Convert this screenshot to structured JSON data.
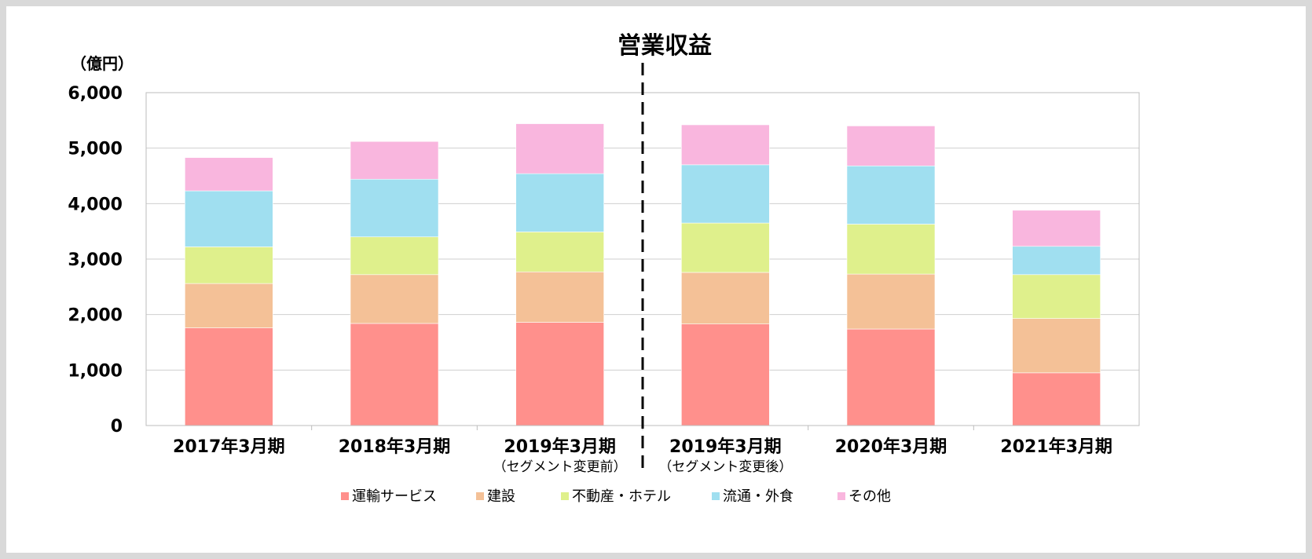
{
  "chart_data": {
    "type": "bar",
    "stacked": true,
    "title": "営業収益",
    "unit_label": "（億円）",
    "ylim": [
      0,
      6000
    ],
    "yticks": [
      "0",
      "1,000",
      "2,000",
      "3,000",
      "4,000",
      "5,000",
      "6,000"
    ],
    "categories": [
      {
        "label": "2017年3月期",
        "sublabel": ""
      },
      {
        "label": "2018年3月期",
        "sublabel": ""
      },
      {
        "label": "2019年3月期",
        "sublabel": "（セグメント変更前）"
      },
      {
        "label": "2019年3月期",
        "sublabel": "（セグメント変更後）"
      },
      {
        "label": "2020年3月期",
        "sublabel": ""
      },
      {
        "label": "2021年3月期",
        "sublabel": ""
      }
    ],
    "series": [
      {
        "name": "運輸サービス",
        "color": "#ff908c",
        "values": [
          1760,
          1840,
          1860,
          1830,
          1740,
          950
        ]
      },
      {
        "name": "建設",
        "color": "#f4c197",
        "values": [
          800,
          880,
          910,
          930,
          990,
          980
        ]
      },
      {
        "name": "不動産・ホテル",
        "color": "#dff08c",
        "values": [
          660,
          680,
          720,
          890,
          900,
          790
        ]
      },
      {
        "name": "流通・外食",
        "color": "#a0dff0",
        "values": [
          1010,
          1040,
          1050,
          1050,
          1050,
          510
        ]
      },
      {
        "name": "その他",
        "color": "#f9b6de",
        "values": [
          600,
          680,
          900,
          720,
          720,
          650
        ]
      }
    ],
    "divider": {
      "after_category_index": 2,
      "style": "dashed"
    },
    "grid": true,
    "legend_position": "bottom"
  }
}
